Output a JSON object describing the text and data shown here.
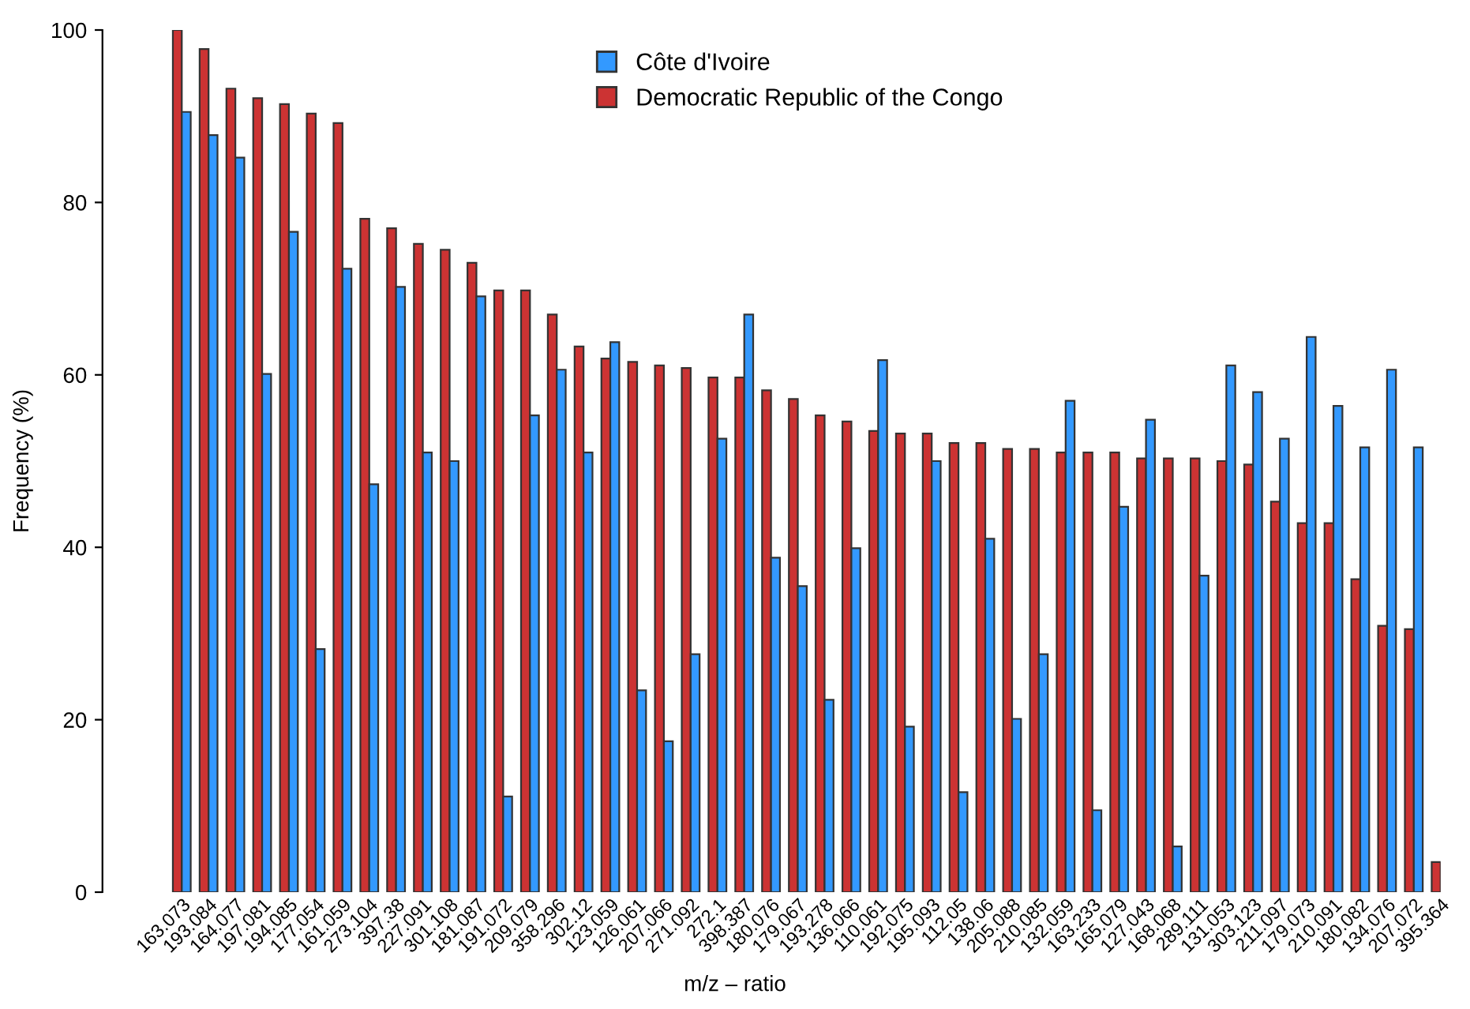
{
  "chart_data": {
    "type": "bar",
    "xlabel": "m/z – ratio",
    "ylabel": "Frequency (%)",
    "categories": [
      "163.073",
      "193.084",
      "164.077",
      "197.081",
      "194.085",
      "177.054",
      "161.059",
      "273.104",
      "397.38",
      "227.091",
      "301.108",
      "181.087",
      "191.072",
      "209.079",
      "358.296",
      "302.12",
      "123.059",
      "126.061",
      "207.066",
      "271.092",
      "272.1",
      "398.387",
      "180.076",
      "179.067",
      "193.278",
      "136.066",
      "110.061",
      "192.075",
      "195.093",
      "112.05",
      "138.06",
      "205.088",
      "210.085",
      "132.059",
      "163.233",
      "165.079",
      "127.043",
      "168.068",
      "289.111",
      "131.053",
      "303.123",
      "211.097",
      "179.073",
      "210.091",
      "180.082",
      "134.076",
      "207.072",
      "395.364"
    ],
    "series": [
      {
        "name": "Democratic Republic of the Congo",
        "color": "#cc3333",
        "values": [
          100,
          97.8,
          93.2,
          92.1,
          91.4,
          90.3,
          89.2,
          78.1,
          77.0,
          75.2,
          74.5,
          73.0,
          69.8,
          69.8,
          67.0,
          63.3,
          61.9,
          61.5,
          61.1,
          60.8,
          59.7,
          59.7,
          58.2,
          57.2,
          55.3,
          54.6,
          53.5,
          53.2,
          53.2,
          52.1,
          52.1,
          51.4,
          51.4,
          51.0,
          51.0,
          51.0,
          50.3,
          50.3,
          50.3,
          50.0,
          49.6,
          45.3,
          42.8,
          42.8,
          36.3,
          30.9,
          30.5,
          3.5
        ]
      },
      {
        "name": "Côte d'Ivoire",
        "color": "#3399ff",
        "values": [
          90.5,
          87.8,
          85.2,
          60.1,
          76.6,
          28.2,
          72.3,
          47.3,
          70.2,
          51.0,
          50.0,
          69.1,
          11.1,
          55.3,
          60.6,
          51.0,
          63.8,
          23.4,
          17.5,
          27.6,
          52.6,
          67.0,
          38.8,
          35.5,
          22.3,
          39.9,
          61.7,
          19.2,
          50.0,
          11.6,
          41.0,
          20.1,
          27.6,
          57.0,
          9.5,
          44.7,
          54.8,
          5.3,
          36.7,
          61.1,
          58.0,
          52.6,
          64.4,
          56.4,
          51.6,
          60.6,
          51.6,
          null
        ]
      }
    ],
    "ylim": [
      0,
      100
    ],
    "yticks": [
      0,
      20,
      40,
      60,
      80,
      100
    ],
    "grid": false,
    "legend": "top"
  }
}
